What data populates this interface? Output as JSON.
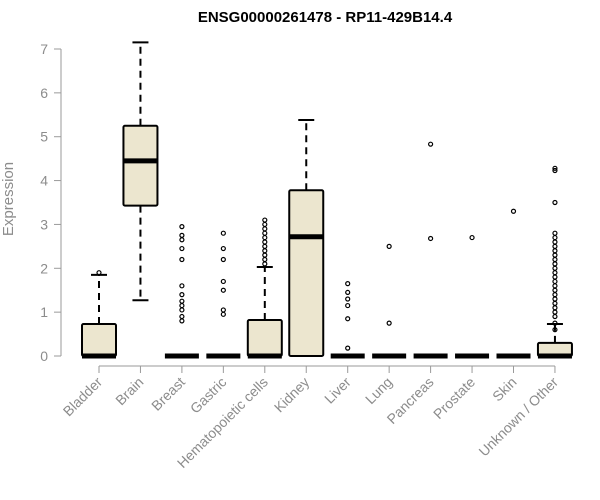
{
  "chart_data": {
    "type": "boxplot",
    "title": "ENSG00000261478 - RP11-429B14.4",
    "xlabel": "",
    "ylabel": "Expression",
    "ylim": [
      0,
      7
    ],
    "yticks": [
      0,
      1,
      2,
      3,
      4,
      5,
      6,
      7
    ],
    "box_fill": "#ece6cf",
    "categories": [
      "Bladder",
      "Brain",
      "Breast",
      "Gastric",
      "Hematopoietic cells",
      "Kidney",
      "Liver",
      "Lung",
      "Pancreas",
      "Prostate",
      "Skin",
      "Unknown / Other"
    ],
    "boxes": [
      {
        "category": "Bladder",
        "whisker_low": 0,
        "q1": 0,
        "median": 0,
        "q3": 0.73,
        "whisker_high": 1.85,
        "outliers": [
          1.9
        ]
      },
      {
        "category": "Brain",
        "whisker_low": 1.27,
        "q1": 3.43,
        "median": 4.45,
        "q3": 5.25,
        "whisker_high": 7.15,
        "outliers": []
      },
      {
        "category": "Breast",
        "whisker_low": 0,
        "q1": 0,
        "median": 0,
        "q3": 0,
        "whisker_high": 0,
        "outliers": [
          0.8,
          0.9,
          1.05,
          1.15,
          1.25,
          1.4,
          1.6,
          2.2,
          2.45,
          2.65,
          2.75,
          2.95
        ]
      },
      {
        "category": "Gastric",
        "whisker_low": 0,
        "q1": 0,
        "median": 0,
        "q3": 0,
        "whisker_high": 0,
        "outliers": [
          0.95,
          1.05,
          1.5,
          1.7,
          2.2,
          2.45,
          2.8
        ]
      },
      {
        "category": "Hematopoietic cells",
        "whisker_low": 0,
        "q1": 0,
        "median": 0,
        "q3": 0.82,
        "whisker_high": 2.03,
        "outliers": [
          2.1,
          2.2,
          2.3,
          2.4,
          2.5,
          2.6,
          2.7,
          2.8,
          2.9,
          3.0,
          3.1
        ]
      },
      {
        "category": "Kidney",
        "whisker_low": 0,
        "q1": 0,
        "median": 2.72,
        "q3": 3.78,
        "whisker_high": 5.38,
        "outliers": []
      },
      {
        "category": "Liver",
        "whisker_low": 0,
        "q1": 0,
        "median": 0,
        "q3": 0,
        "whisker_high": 0,
        "outliers": [
          0.18,
          0.85,
          1.15,
          1.3,
          1.45,
          1.65
        ]
      },
      {
        "category": "Lung",
        "whisker_low": 0,
        "q1": 0,
        "median": 0,
        "q3": 0,
        "whisker_high": 0,
        "outliers": [
          0.75,
          2.5
        ]
      },
      {
        "category": "Pancreas",
        "whisker_low": 0,
        "q1": 0,
        "median": 0,
        "q3": 0,
        "whisker_high": 0,
        "outliers": [
          2.68,
          4.83
        ]
      },
      {
        "category": "Prostate",
        "whisker_low": 0,
        "q1": 0,
        "median": 0,
        "q3": 0,
        "whisker_high": 0,
        "outliers": [
          2.7
        ]
      },
      {
        "category": "Skin",
        "whisker_low": 0,
        "q1": 0,
        "median": 0,
        "q3": 0,
        "whisker_high": 0,
        "outliers": [
          3.3
        ]
      },
      {
        "category": "Unknown / Other",
        "whisker_low": 0,
        "q1": 0,
        "median": 0,
        "q3": 0.3,
        "whisker_high": 0.73,
        "outliers": [
          0.6,
          0.75,
          0.9,
          1.0,
          1.1,
          1.2,
          1.3,
          1.4,
          1.5,
          1.6,
          1.7,
          1.8,
          1.9,
          2.0,
          2.1,
          2.2,
          2.3,
          2.4,
          2.5,
          2.6,
          2.7,
          2.8,
          3.5,
          4.23,
          4.28
        ]
      }
    ]
  }
}
